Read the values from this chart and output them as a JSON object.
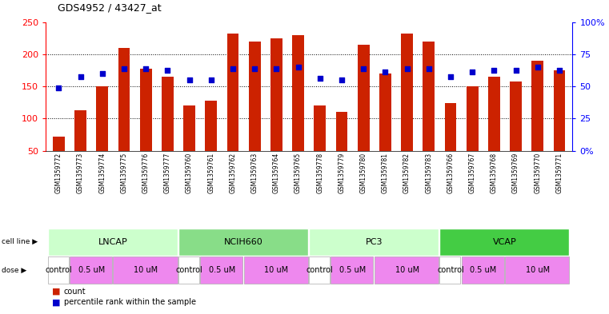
{
  "title": "GDS4952 / 43427_at",
  "samples": [
    "GSM1359772",
    "GSM1359773",
    "GSM1359774",
    "GSM1359775",
    "GSM1359776",
    "GSM1359777",
    "GSM1359760",
    "GSM1359761",
    "GSM1359762",
    "GSM1359763",
    "GSM1359764",
    "GSM1359765",
    "GSM1359778",
    "GSM1359779",
    "GSM1359780",
    "GSM1359781",
    "GSM1359782",
    "GSM1359783",
    "GSM1359766",
    "GSM1359767",
    "GSM1359768",
    "GSM1359769",
    "GSM1359770",
    "GSM1359771"
  ],
  "bar_values": [
    72,
    113,
    150,
    210,
    178,
    165,
    120,
    128,
    232,
    220,
    225,
    230,
    120,
    110,
    215,
    170,
    232,
    220,
    124,
    150,
    165,
    157,
    190,
    175
  ],
  "blue_dot_values": [
    148,
    165,
    170,
    178,
    178,
    175,
    160,
    160,
    178,
    178,
    178,
    180,
    162,
    160,
    178,
    172,
    178,
    178,
    165,
    172,
    175,
    175,
    180,
    175
  ],
  "bar_color": "#cc2200",
  "blue_dot_color": "#0000cc",
  "ylim_left": [
    50,
    250
  ],
  "ylim_right": [
    0,
    100
  ],
  "yticks_left": [
    50,
    100,
    150,
    200,
    250
  ],
  "yticks_right": [
    0,
    25,
    50,
    75,
    100
  ],
  "ytick_labels_right": [
    "0%",
    "25",
    "50",
    "75",
    "100%"
  ],
  "bg_color": "#ffffff",
  "plot_bg_color": "#ffffff",
  "names_bg_color": "#c8c8c8",
  "bar_width": 0.55,
  "cell_line_data": [
    {
      "label": "LNCAP",
      "start": 0,
      "end": 6,
      "color": "#ccffcc"
    },
    {
      "label": "NCIH660",
      "start": 6,
      "end": 12,
      "color": "#88dd88"
    },
    {
      "label": "PC3",
      "start": 12,
      "end": 18,
      "color": "#ccffcc"
    },
    {
      "label": "VCAP",
      "start": 18,
      "end": 24,
      "color": "#44cc44"
    }
  ],
  "dose_groups": [
    {
      "label": "control",
      "start": 0,
      "end": 1,
      "color": "#ffffff"
    },
    {
      "label": "0.5 uM",
      "start": 1,
      "end": 3,
      "color": "#ee88ee"
    },
    {
      "label": "10 uM",
      "start": 3,
      "end": 6,
      "color": "#ee88ee"
    },
    {
      "label": "control",
      "start": 6,
      "end": 7,
      "color": "#ffffff"
    },
    {
      "label": "0.5 uM",
      "start": 7,
      "end": 9,
      "color": "#ee88ee"
    },
    {
      "label": "10 uM",
      "start": 9,
      "end": 12,
      "color": "#ee88ee"
    },
    {
      "label": "control",
      "start": 12,
      "end": 13,
      "color": "#ffffff"
    },
    {
      "label": "0.5 uM",
      "start": 13,
      "end": 15,
      "color": "#ee88ee"
    },
    {
      "label": "10 uM",
      "start": 15,
      "end": 18,
      "color": "#ee88ee"
    },
    {
      "label": "control",
      "start": 18,
      "end": 19,
      "color": "#ffffff"
    },
    {
      "label": "0.5 uM",
      "start": 19,
      "end": 21,
      "color": "#ee88ee"
    },
    {
      "label": "10 uM",
      "start": 21,
      "end": 24,
      "color": "#ee88ee"
    }
  ]
}
